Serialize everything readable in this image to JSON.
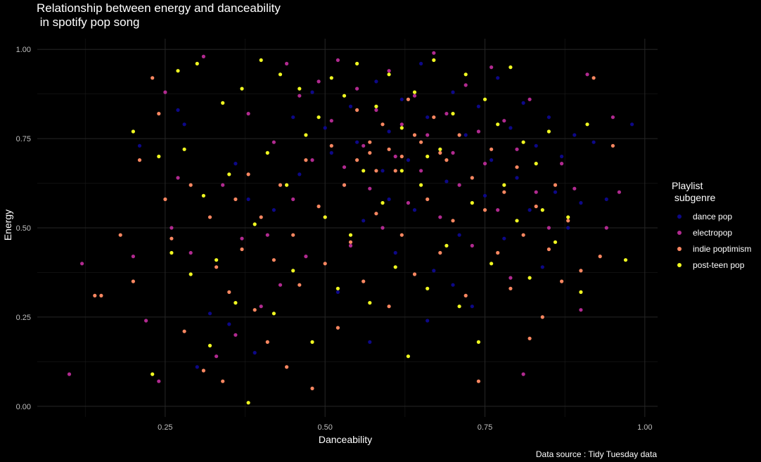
{
  "chart_data": {
    "type": "scatter",
    "title": "Relationship between energy and danceability\n in spotify pop song",
    "xlabel": "Danceability",
    "ylabel": "Energy",
    "caption": "Data source : Tidy Tuesday data",
    "xlim": [
      0.05,
      1.02
    ],
    "ylim": [
      -0.03,
      1.03
    ],
    "x_ticks": [
      "0.25",
      "0.50",
      "0.75",
      "1.00"
    ],
    "y_ticks": [
      "0.00",
      "0.25",
      "0.50",
      "0.75",
      "1.00"
    ],
    "grid": true,
    "legend": {
      "title": "Playlist\n subgenre",
      "position": "right"
    },
    "series": [
      {
        "name": "dance pop",
        "color": "#0d0887",
        "points": [
          [
            0.21,
            0.73
          ],
          [
            0.27,
            0.83
          ],
          [
            0.28,
            0.79
          ],
          [
            0.3,
            0.11
          ],
          [
            0.32,
            0.26
          ],
          [
            0.35,
            0.23
          ],
          [
            0.36,
            0.68
          ],
          [
            0.38,
            0.58
          ],
          [
            0.39,
            0.15
          ],
          [
            0.42,
            0.55
          ],
          [
            0.45,
            0.81
          ],
          [
            0.46,
            0.65
          ],
          [
            0.48,
            0.88
          ],
          [
            0.5,
            0.78
          ],
          [
            0.51,
            0.71
          ],
          [
            0.52,
            0.32
          ],
          [
            0.53,
            0.62
          ],
          [
            0.54,
            0.84
          ],
          [
            0.55,
            0.74
          ],
          [
            0.56,
            0.52
          ],
          [
            0.57,
            0.18
          ],
          [
            0.58,
            0.91
          ],
          [
            0.59,
            0.66
          ],
          [
            0.6,
            0.77
          ],
          [
            0.61,
            0.43
          ],
          [
            0.62,
            0.86
          ],
          [
            0.63,
            0.69
          ],
          [
            0.64,
            0.55
          ],
          [
            0.65,
            0.96
          ],
          [
            0.66,
            0.81
          ],
          [
            0.67,
            0.38
          ],
          [
            0.68,
            0.72
          ],
          [
            0.69,
            0.63
          ],
          [
            0.7,
            0.88
          ],
          [
            0.71,
            0.48
          ],
          [
            0.72,
            0.76
          ],
          [
            0.73,
            0.28
          ],
          [
            0.74,
            0.84
          ],
          [
            0.75,
            0.59
          ],
          [
            0.76,
            0.69
          ],
          [
            0.77,
            0.92
          ],
          [
            0.78,
            0.47
          ],
          [
            0.79,
            0.78
          ],
          [
            0.8,
            0.64
          ],
          [
            0.81,
            0.85
          ],
          [
            0.82,
            0.55
          ],
          [
            0.83,
            0.73
          ],
          [
            0.84,
            0.39
          ],
          [
            0.85,
            0.81
          ],
          [
            0.86,
            0.6
          ],
          [
            0.87,
            0.7
          ],
          [
            0.88,
            0.5
          ],
          [
            0.89,
            0.76
          ],
          [
            0.9,
            0.57
          ],
          [
            0.92,
            0.74
          ],
          [
            0.94,
            0.58
          ],
          [
            0.98,
            0.79
          ],
          [
            0.6,
            0.58
          ],
          [
            0.66,
            0.24
          ],
          [
            0.7,
            0.34
          ]
        ]
      },
      {
        "name": "electropop",
        "color": "#b12a90",
        "points": [
          [
            0.1,
            0.09
          ],
          [
            0.12,
            0.4
          ],
          [
            0.2,
            0.42
          ],
          [
            0.22,
            0.24
          ],
          [
            0.24,
            0.07
          ],
          [
            0.25,
            0.88
          ],
          [
            0.26,
            0.5
          ],
          [
            0.27,
            0.64
          ],
          [
            0.29,
            0.43
          ],
          [
            0.31,
            0.98
          ],
          [
            0.33,
            0.14
          ],
          [
            0.34,
            0.62
          ],
          [
            0.36,
            0.2
          ],
          [
            0.37,
            0.47
          ],
          [
            0.38,
            0.82
          ],
          [
            0.4,
            0.28
          ],
          [
            0.41,
            0.48
          ],
          [
            0.42,
            0.74
          ],
          [
            0.43,
            0.34
          ],
          [
            0.44,
            0.96
          ],
          [
            0.45,
            0.58
          ],
          [
            0.46,
            0.87
          ],
          [
            0.47,
            0.42
          ],
          [
            0.48,
            0.69
          ],
          [
            0.49,
            0.91
          ],
          [
            0.5,
            0.53
          ],
          [
            0.51,
            0.8
          ],
          [
            0.52,
            0.97
          ],
          [
            0.53,
            0.67
          ],
          [
            0.54,
            0.45
          ],
          [
            0.55,
            0.89
          ],
          [
            0.56,
            0.73
          ],
          [
            0.57,
            0.61
          ],
          [
            0.58,
            0.83
          ],
          [
            0.59,
            0.5
          ],
          [
            0.6,
            0.94
          ],
          [
            0.61,
            0.7
          ],
          [
            0.62,
            0.79
          ],
          [
            0.63,
            0.57
          ],
          [
            0.64,
            0.87
          ],
          [
            0.65,
            0.66
          ],
          [
            0.66,
            0.76
          ],
          [
            0.67,
            0.99
          ],
          [
            0.68,
            0.53
          ],
          [
            0.69,
            0.82
          ],
          [
            0.7,
            0.71
          ],
          [
            0.71,
            0.62
          ],
          [
            0.72,
            0.9
          ],
          [
            0.73,
            0.45
          ],
          [
            0.74,
            0.77
          ],
          [
            0.75,
            0.68
          ],
          [
            0.76,
            0.95
          ],
          [
            0.77,
            0.55
          ],
          [
            0.78,
            0.8
          ],
          [
            0.79,
            0.36
          ],
          [
            0.8,
            0.72
          ],
          [
            0.81,
            0.09
          ],
          [
            0.82,
            0.86
          ],
          [
            0.83,
            0.6
          ],
          [
            0.85,
            0.5
          ],
          [
            0.87,
            0.68
          ],
          [
            0.89,
            0.61
          ],
          [
            0.9,
            0.27
          ],
          [
            0.91,
            0.93
          ],
          [
            0.94,
            0.5
          ],
          [
            0.95,
            0.81
          ],
          [
            0.96,
            0.6
          ]
        ]
      },
      {
        "name": "indie poptimism",
        "color": "#fb8761",
        "points": [
          [
            0.14,
            0.31
          ],
          [
            0.15,
            0.31
          ],
          [
            0.18,
            0.48
          ],
          [
            0.2,
            0.35
          ],
          [
            0.21,
            0.69
          ],
          [
            0.23,
            0.92
          ],
          [
            0.24,
            0.82
          ],
          [
            0.25,
            0.58
          ],
          [
            0.26,
            0.47
          ],
          [
            0.28,
            0.21
          ],
          [
            0.29,
            0.62
          ],
          [
            0.31,
            0.1
          ],
          [
            0.32,
            0.53
          ],
          [
            0.33,
            0.39
          ],
          [
            0.34,
            0.07
          ],
          [
            0.35,
            0.32
          ],
          [
            0.36,
            0.58
          ],
          [
            0.37,
            0.44
          ],
          [
            0.38,
            0.65
          ],
          [
            0.39,
            0.27
          ],
          [
            0.4,
            0.53
          ],
          [
            0.41,
            0.18
          ],
          [
            0.42,
            0.41
          ],
          [
            0.43,
            0.62
          ],
          [
            0.44,
            0.11
          ],
          [
            0.45,
            0.48
          ],
          [
            0.46,
            0.34
          ],
          [
            0.47,
            0.69
          ],
          [
            0.48,
            0.05
          ],
          [
            0.49,
            0.56
          ],
          [
            0.5,
            0.4
          ],
          [
            0.51,
            0.73
          ],
          [
            0.52,
            0.22
          ],
          [
            0.53,
            0.62
          ],
          [
            0.54,
            0.46
          ],
          [
            0.55,
            0.83
          ],
          [
            0.56,
            0.35
          ],
          [
            0.57,
            0.71
          ],
          [
            0.58,
            0.54
          ],
          [
            0.59,
            0.79
          ],
          [
            0.6,
            0.28
          ],
          [
            0.61,
            0.66
          ],
          [
            0.62,
            0.48
          ],
          [
            0.63,
            0.86
          ],
          [
            0.64,
            0.37
          ],
          [
            0.65,
            0.74
          ],
          [
            0.66,
            0.58
          ],
          [
            0.67,
            0.81
          ],
          [
            0.68,
            0.43
          ],
          [
            0.69,
            0.69
          ],
          [
            0.7,
            0.52
          ],
          [
            0.71,
            0.76
          ],
          [
            0.72,
            0.31
          ],
          [
            0.73,
            0.64
          ],
          [
            0.74,
            0.07
          ],
          [
            0.75,
            0.55
          ],
          [
            0.76,
            0.72
          ],
          [
            0.77,
            0.43
          ],
          [
            0.78,
            0.6
          ],
          [
            0.79,
            0.33
          ],
          [
            0.8,
            0.67
          ],
          [
            0.81,
            0.48
          ],
          [
            0.82,
            0.19
          ],
          [
            0.83,
            0.56
          ],
          [
            0.84,
            0.25
          ],
          [
            0.85,
            0.44
          ],
          [
            0.86,
            0.62
          ],
          [
            0.87,
            0.35
          ],
          [
            0.88,
            0.52
          ],
          [
            0.9,
            0.38
          ],
          [
            0.92,
            0.92
          ],
          [
            0.93,
            0.42
          ],
          [
            0.95,
            0.73
          ],
          [
            0.57,
            0.74
          ],
          [
            0.6,
            0.72
          ],
          [
            0.62,
            0.7
          ],
          [
            0.58,
            0.66
          ],
          [
            0.64,
            0.76
          ],
          [
            0.55,
            0.69
          ],
          [
            0.68,
            0.71
          ]
        ]
      },
      {
        "name": "post-teen pop",
        "color": "#f0f921",
        "points": [
          [
            0.2,
            0.77
          ],
          [
            0.23,
            0.09
          ],
          [
            0.24,
            0.7
          ],
          [
            0.26,
            0.43
          ],
          [
            0.27,
            0.94
          ],
          [
            0.28,
            0.72
          ],
          [
            0.29,
            0.37
          ],
          [
            0.3,
            0.96
          ],
          [
            0.31,
            0.59
          ],
          [
            0.32,
            0.17
          ],
          [
            0.33,
            0.41
          ],
          [
            0.34,
            0.85
          ],
          [
            0.35,
            0.65
          ],
          [
            0.36,
            0.29
          ],
          [
            0.37,
            0.89
          ],
          [
            0.38,
            0.01
          ],
          [
            0.39,
            0.51
          ],
          [
            0.4,
            0.97
          ],
          [
            0.41,
            0.71
          ],
          [
            0.42,
            0.26
          ],
          [
            0.43,
            0.93
          ],
          [
            0.44,
            0.62
          ],
          [
            0.45,
            0.38
          ],
          [
            0.46,
            0.89
          ],
          [
            0.47,
            0.76
          ],
          [
            0.48,
            0.18
          ],
          [
            0.49,
            0.81
          ],
          [
            0.5,
            0.53
          ],
          [
            0.51,
            0.92
          ],
          [
            0.52,
            0.33
          ],
          [
            0.53,
            0.87
          ],
          [
            0.54,
            0.48
          ],
          [
            0.55,
            0.96
          ],
          [
            0.56,
            0.66
          ],
          [
            0.57,
            0.29
          ],
          [
            0.58,
            0.84
          ],
          [
            0.59,
            0.57
          ],
          [
            0.6,
            0.93
          ],
          [
            0.61,
            0.39
          ],
          [
            0.62,
            0.78
          ],
          [
            0.63,
            0.14
          ],
          [
            0.64,
            0.88
          ],
          [
            0.65,
            0.62
          ],
          [
            0.66,
            0.33
          ],
          [
            0.67,
            0.97
          ],
          [
            0.68,
            0.72
          ],
          [
            0.69,
            0.45
          ],
          [
            0.7,
            0.82
          ],
          [
            0.71,
            0.28
          ],
          [
            0.72,
            0.93
          ],
          [
            0.73,
            0.57
          ],
          [
            0.74,
            0.18
          ],
          [
            0.75,
            0.86
          ],
          [
            0.76,
            0.4
          ],
          [
            0.77,
            0.79
          ],
          [
            0.78,
            0.62
          ],
          [
            0.79,
            0.95
          ],
          [
            0.8,
            0.52
          ],
          [
            0.81,
            0.74
          ],
          [
            0.82,
            0.36
          ],
          [
            0.83,
            0.68
          ],
          [
            0.84,
            0.55
          ],
          [
            0.85,
            0.77
          ],
          [
            0.86,
            0.46
          ],
          [
            0.88,
            0.53
          ],
          [
            0.9,
            0.32
          ],
          [
            0.91,
            0.79
          ],
          [
            0.97,
            0.41
          ],
          [
            0.62,
            0.66
          ],
          [
            0.66,
            0.7
          ]
        ]
      }
    ]
  }
}
